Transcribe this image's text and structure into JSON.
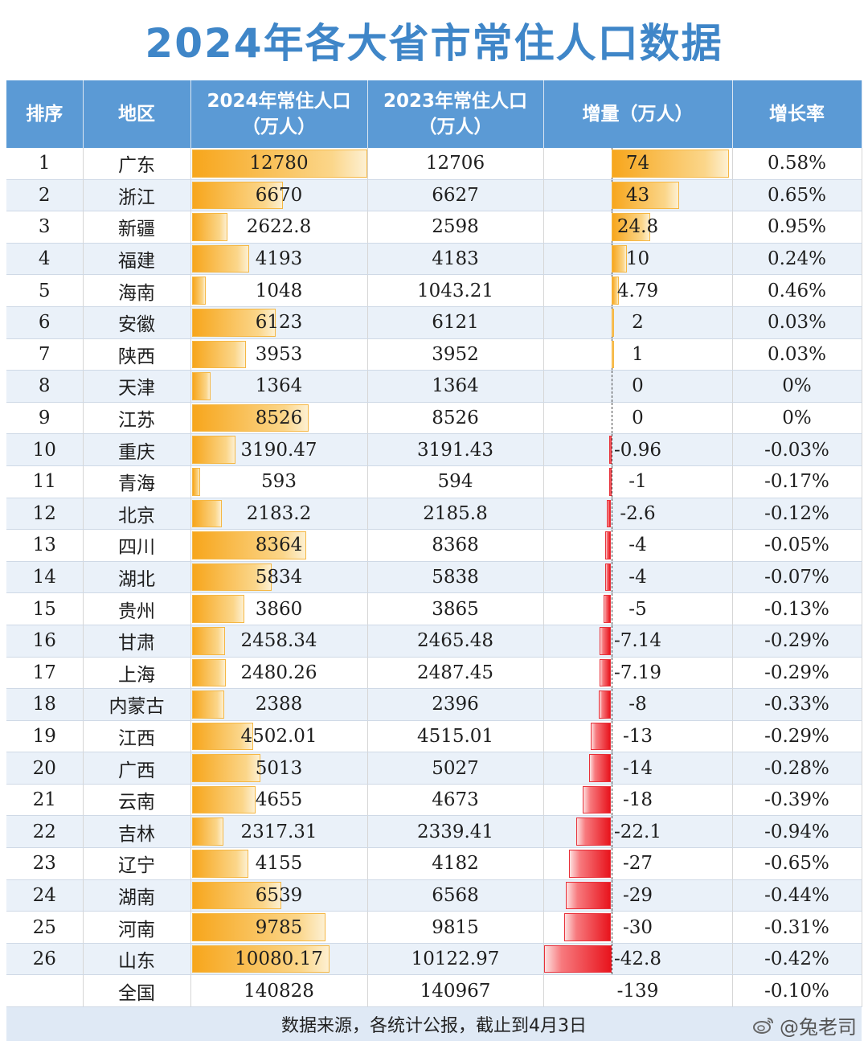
{
  "title": "2024年各大省市常住人口数据",
  "headers": {
    "rank": "排序",
    "region": "地区",
    "pop2024": "2024年常住人口\n（万人）",
    "pop2023": "2023年常住人口\n（万人）",
    "delta": "增量（万人）",
    "rate": "增长率"
  },
  "chart_data": {
    "type": "table",
    "columns": [
      "排序",
      "地区",
      "2024年常住人口（万人）",
      "2023年常住人口（万人）",
      "增量（万人）",
      "增长率"
    ],
    "rows": [
      {
        "rank": "1",
        "region": "广东",
        "pop2024": "12780",
        "pop2023": "12706",
        "delta": "74",
        "rate": "0.58%",
        "v2024": 12780,
        "vdelta": 74
      },
      {
        "rank": "2",
        "region": "浙江",
        "pop2024": "6670",
        "pop2023": "6627",
        "delta": "43",
        "rate": "0.65%",
        "v2024": 6670,
        "vdelta": 43
      },
      {
        "rank": "3",
        "region": "新疆",
        "pop2024": "2622.8",
        "pop2023": "2598",
        "delta": "24.8",
        "rate": "0.95%",
        "v2024": 2622.8,
        "vdelta": 24.8
      },
      {
        "rank": "4",
        "region": "福建",
        "pop2024": "4193",
        "pop2023": "4183",
        "delta": "10",
        "rate": "0.24%",
        "v2024": 4193,
        "vdelta": 10
      },
      {
        "rank": "5",
        "region": "海南",
        "pop2024": "1048",
        "pop2023": "1043.21",
        "delta": "4.79",
        "rate": "0.46%",
        "v2024": 1048,
        "vdelta": 4.79
      },
      {
        "rank": "6",
        "region": "安徽",
        "pop2024": "6123",
        "pop2023": "6121",
        "delta": "2",
        "rate": "0.03%",
        "v2024": 6123,
        "vdelta": 2
      },
      {
        "rank": "7",
        "region": "陕西",
        "pop2024": "3953",
        "pop2023": "3952",
        "delta": "1",
        "rate": "0.03%",
        "v2024": 3953,
        "vdelta": 1
      },
      {
        "rank": "8",
        "region": "天津",
        "pop2024": "1364",
        "pop2023": "1364",
        "delta": "0",
        "rate": "0%",
        "v2024": 1364,
        "vdelta": 0
      },
      {
        "rank": "9",
        "region": "江苏",
        "pop2024": "8526",
        "pop2023": "8526",
        "delta": "0",
        "rate": "0%",
        "v2024": 8526,
        "vdelta": 0
      },
      {
        "rank": "10",
        "region": "重庆",
        "pop2024": "3190.47",
        "pop2023": "3191.43",
        "delta": "-0.96",
        "rate": "-0.03%",
        "v2024": 3190.47,
        "vdelta": -0.96
      },
      {
        "rank": "11",
        "region": "青海",
        "pop2024": "593",
        "pop2023": "594",
        "delta": "-1",
        "rate": "-0.17%",
        "v2024": 593,
        "vdelta": -1
      },
      {
        "rank": "12",
        "region": "北京",
        "pop2024": "2183.2",
        "pop2023": "2185.8",
        "delta": "-2.6",
        "rate": "-0.12%",
        "v2024": 2183.2,
        "vdelta": -2.6
      },
      {
        "rank": "13",
        "region": "四川",
        "pop2024": "8364",
        "pop2023": "8368",
        "delta": "-4",
        "rate": "-0.05%",
        "v2024": 8364,
        "vdelta": -4
      },
      {
        "rank": "14",
        "region": "湖北",
        "pop2024": "5834",
        "pop2023": "5838",
        "delta": "-4",
        "rate": "-0.07%",
        "v2024": 5834,
        "vdelta": -4
      },
      {
        "rank": "15",
        "region": "贵州",
        "pop2024": "3860",
        "pop2023": "3865",
        "delta": "-5",
        "rate": "-0.13%",
        "v2024": 3860,
        "vdelta": -5
      },
      {
        "rank": "16",
        "region": "甘肃",
        "pop2024": "2458.34",
        "pop2023": "2465.48",
        "delta": "-7.14",
        "rate": "-0.29%",
        "v2024": 2458.34,
        "vdelta": -7.14
      },
      {
        "rank": "17",
        "region": "上海",
        "pop2024": "2480.26",
        "pop2023": "2487.45",
        "delta": "-7.19",
        "rate": "-0.29%",
        "v2024": 2480.26,
        "vdelta": -7.19
      },
      {
        "rank": "18",
        "region": "内蒙古",
        "pop2024": "2388",
        "pop2023": "2396",
        "delta": "-8",
        "rate": "-0.33%",
        "v2024": 2388,
        "vdelta": -8
      },
      {
        "rank": "19",
        "region": "江西",
        "pop2024": "4502.01",
        "pop2023": "4515.01",
        "delta": "-13",
        "rate": "-0.29%",
        "v2024": 4502.01,
        "vdelta": -13
      },
      {
        "rank": "20",
        "region": "广西",
        "pop2024": "5013",
        "pop2023": "5027",
        "delta": "-14",
        "rate": "-0.28%",
        "v2024": 5013,
        "vdelta": -14
      },
      {
        "rank": "21",
        "region": "云南",
        "pop2024": "4655",
        "pop2023": "4673",
        "delta": "-18",
        "rate": "-0.39%",
        "v2024": 4655,
        "vdelta": -18
      },
      {
        "rank": "22",
        "region": "吉林",
        "pop2024": "2317.31",
        "pop2023": "2339.41",
        "delta": "-22.1",
        "rate": "-0.94%",
        "v2024": 2317.31,
        "vdelta": -22.1
      },
      {
        "rank": "23",
        "region": "辽宁",
        "pop2024": "4155",
        "pop2023": "4182",
        "delta": "-27",
        "rate": "-0.65%",
        "v2024": 4155,
        "vdelta": -27
      },
      {
        "rank": "24",
        "region": "湖南",
        "pop2024": "6539",
        "pop2023": "6568",
        "delta": "-29",
        "rate": "-0.44%",
        "v2024": 6539,
        "vdelta": -29
      },
      {
        "rank": "25",
        "region": "河南",
        "pop2024": "9785",
        "pop2023": "9815",
        "delta": "-30",
        "rate": "-0.31%",
        "v2024": 9785,
        "vdelta": -30
      },
      {
        "rank": "26",
        "region": "山东",
        "pop2024": "10080.17",
        "pop2023": "10122.97",
        "delta": "-42.8",
        "rate": "-0.42%",
        "v2024": 10080.17,
        "vdelta": -42.8
      }
    ],
    "total": {
      "rank": "",
      "region": "全国",
      "pop2024": "140828",
      "pop2023": "140967",
      "delta": "-139",
      "rate": "-0.10%"
    }
  },
  "footer": "数据来源，各统计公报，截止到4月3日",
  "watermark": "@兔老司",
  "colors": {
    "title": "#3f86c8",
    "header_bg": "#5b9ad5",
    "positive_bar": "#f7a61c",
    "negative_bar": "#e8141d",
    "stripe": "#eaf1f9"
  }
}
